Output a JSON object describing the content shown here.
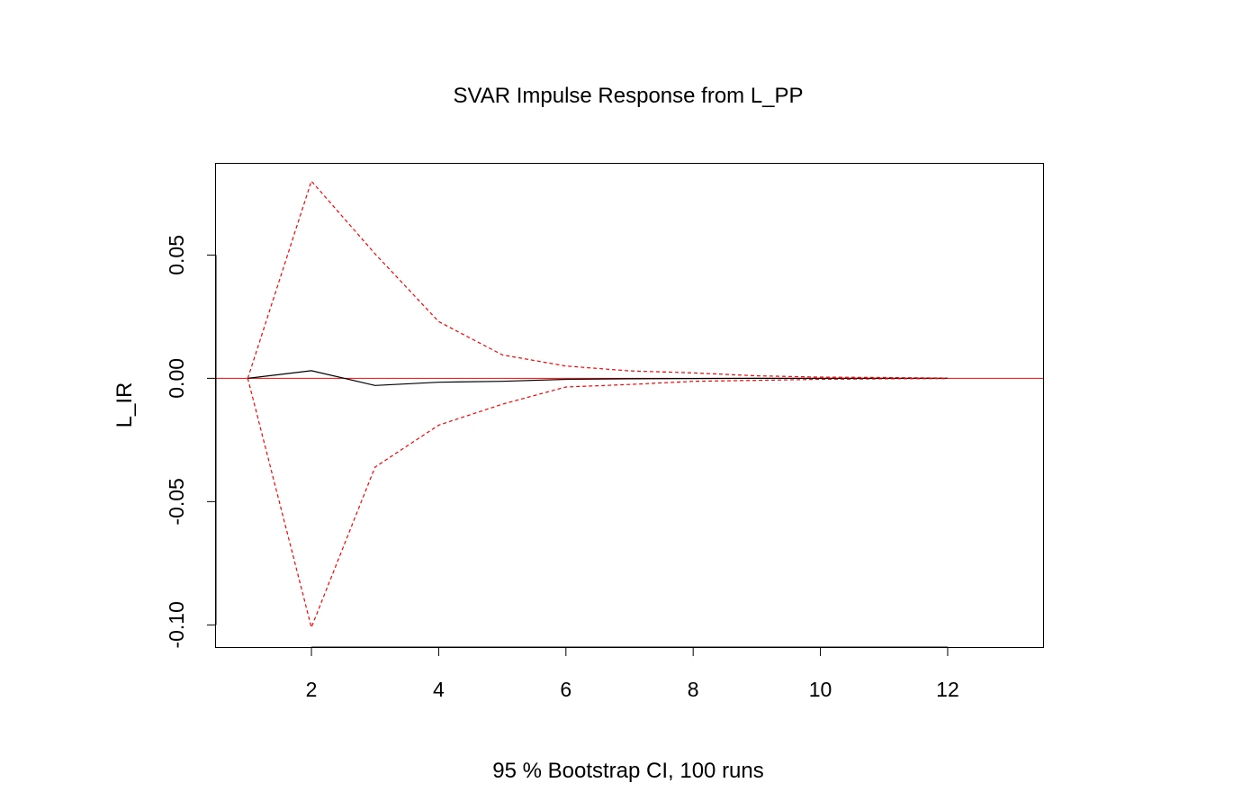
{
  "chart_data": {
    "type": "line",
    "title": "SVAR Impulse Response from L_PP",
    "xlabel": "95 % Bootstrap CI,  100 runs",
    "ylabel": "L_IR",
    "xlim": [
      0.5,
      13.5
    ],
    "ylim": [
      -0.109,
      0.087
    ],
    "x_ticks": [
      2,
      4,
      6,
      8,
      10,
      12
    ],
    "x_tick_labels": [
      "2",
      "4",
      "6",
      "8",
      "10",
      "12"
    ],
    "y_ticks": [
      -0.1,
      -0.05,
      0.0,
      0.05
    ],
    "y_tick_labels": [
      "-0.10",
      "-0.05",
      "0.00",
      "0.05"
    ],
    "zero_line": {
      "value": 0,
      "color": "#ff0000"
    },
    "grid": false,
    "x": [
      1,
      2,
      3,
      4,
      5,
      6,
      7,
      8,
      9,
      10,
      11,
      12
    ],
    "series": [
      {
        "role": "response",
        "color": "#000000",
        "style": "solid",
        "values": [
          0.0,
          0.0031,
          -0.0029,
          -0.0016,
          -0.0012,
          -0.0004,
          -0.0002,
          -0.0001,
          0.0,
          0.0,
          0.0,
          0.0
        ]
      },
      {
        "role": "upper",
        "color": "#ff0000",
        "style": "dashed",
        "values": [
          0.0,
          0.08,
          0.0505,
          0.023,
          0.0095,
          0.005,
          0.003,
          0.0022,
          0.001,
          0.0005,
          0.0003,
          0.0001
        ]
      },
      {
        "role": "lower",
        "color": "#ff0000",
        "style": "dashed",
        "values": [
          0.0,
          -0.101,
          -0.036,
          -0.019,
          -0.0105,
          -0.0035,
          -0.0025,
          -0.0012,
          -0.0008,
          -0.0004,
          -0.0002,
          -0.0001
        ]
      }
    ]
  }
}
